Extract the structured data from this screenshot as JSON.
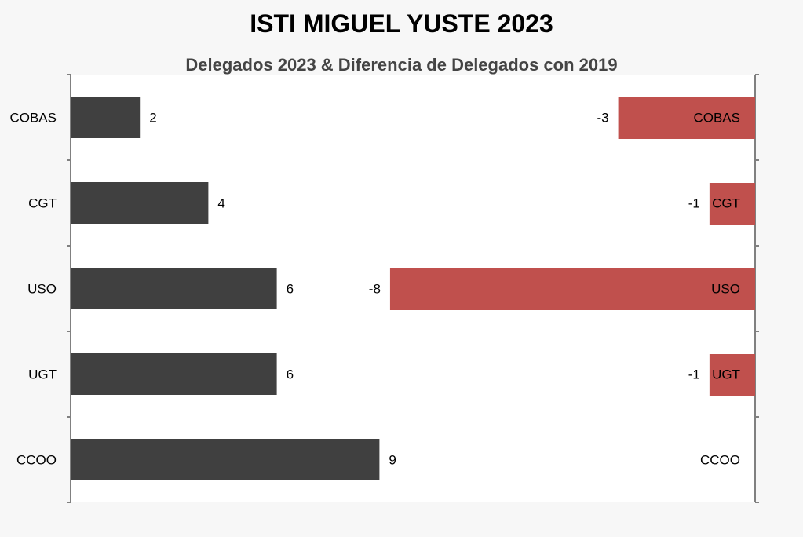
{
  "chart_data": [
    {
      "type": "bar",
      "orientation": "horizontal",
      "title": "ISTI MIGUEL YUSTE 2023",
      "subtitle": "Delegados 2023 & Diferencia de Delegados con 2019",
      "categories": [
        "COBAS",
        "CGT",
        "USO",
        "UGT",
        "CCOO"
      ],
      "values": [
        2,
        4,
        6,
        6,
        9
      ],
      "xlim": [
        0,
        20
      ],
      "bar_color": "#404040",
      "axis_side": "left",
      "grid": false
    },
    {
      "type": "bar",
      "orientation": "horizontal",
      "categories": [
        "COBAS",
        "CGT",
        "USO",
        "UGT",
        "CCOO"
      ],
      "values": [
        -3,
        -1,
        -8,
        -1,
        0
      ],
      "xlim": [
        -15,
        0
      ],
      "bar_color": "#c0504d",
      "axis_side": "right",
      "category_labels_inside": true,
      "grid": false
    }
  ],
  "colors": {
    "background": "#f7f7f7",
    "plot_area": "#ffffff",
    "axis": "#808080"
  }
}
